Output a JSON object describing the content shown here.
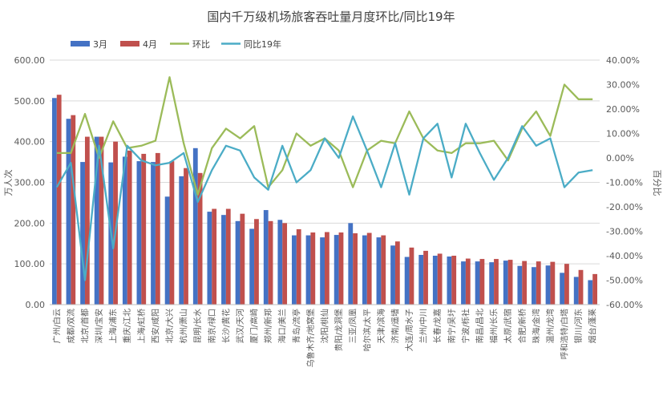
{
  "chart_data": {
    "type": "bar",
    "title": "国内千万级机场旅客吞吐量月度环比/同比19年",
    "ylabel_left": "万人次",
    "ylabel_right": "百分比",
    "ylim_left": [
      0,
      600
    ],
    "ylim_right": [
      -60,
      40
    ],
    "left_ticks": [
      "0.00",
      "100.00",
      "200.00",
      "300.00",
      "400.00",
      "500.00",
      "600.00"
    ],
    "right_ticks": [
      "-60.00%",
      "-50.00%",
      "-40.00%",
      "-30.00%",
      "-20.00%",
      "-10.00%",
      "0.00%",
      "10.00%",
      "20.00%",
      "30.00%",
      "40.00%"
    ],
    "legend_position": "top-left",
    "categories": [
      "广州/白云",
      "成都/双流",
      "北京/首都",
      "深圳/宝安",
      "上海/浦东",
      "重庆/江北",
      "上海/虹桥",
      "西安/咸阳",
      "北京/大兴",
      "杭州/萧山",
      "昆明/长水",
      "南京/禄口",
      "长沙/黄花",
      "武汉/天河",
      "厦门/高崎",
      "郑州/新郑",
      "海口/美兰",
      "青岛/流亭",
      "乌鲁木齐/地窝堡",
      "沈阳/桃仙",
      "贵阳/龙洞堡",
      "三亚/凤凰",
      "哈尔滨/太平",
      "天津/滨海",
      "济南/遥墙",
      "大连/周水子",
      "兰州/中川",
      "长春/龙嘉",
      "南宁/吴圩",
      "宁波/栎社",
      "南昌/昌北",
      "福州/长乐",
      "太原/武宿",
      "合肥/新桥",
      "珠海/金湾",
      "温州/龙湾",
      "呼和浩特/白塔",
      "银川/河东",
      "烟台/蓬莱"
    ],
    "series": [
      {
        "name": "3月",
        "kind": "bar",
        "axis": "left",
        "color": "#4472C4",
        "values": [
          507,
          456,
          350,
          412,
          349,
          363,
          352,
          350,
          265,
          315,
          384,
          228,
          220,
          205,
          186,
          232,
          208,
          170,
          170,
          165,
          171,
          200,
          170,
          165,
          145,
          117,
          122,
          120,
          118,
          106,
          106,
          104,
          108,
          95,
          92,
          96,
          78,
          68,
          60
        ]
      },
      {
        "name": "4月",
        "kind": "bar",
        "axis": "left",
        "color": "#C0504D",
        "values": [
          515,
          465,
          412,
          412,
          400,
          378,
          370,
          372,
          352,
          335,
          323,
          235,
          235,
          223,
          210,
          205,
          200,
          185,
          177,
          178,
          177,
          175,
          176,
          170,
          155,
          140,
          132,
          125,
          120,
          113,
          112,
          112,
          110,
          107,
          106,
          105,
          100,
          85,
          75
        ]
      },
      {
        "name": "环比",
        "kind": "line",
        "axis": "right",
        "color": "#9BBB59",
        "values": [
          2,
          2,
          18,
          0,
          15,
          4,
          5,
          7,
          33,
          6,
          -15,
          4,
          12,
          8,
          13,
          -12,
          -5,
          10,
          5,
          8,
          3,
          -12,
          3,
          7,
          6,
          19,
          8,
          3,
          2,
          6,
          6,
          7,
          -1,
          12,
          19,
          9,
          30,
          24,
          24
        ]
      },
      {
        "name": "同比19年",
        "kind": "line",
        "axis": "right",
        "color": "#4BACC6",
        "values": [
          -12,
          -2,
          -50,
          5,
          -37,
          5,
          -1,
          -3,
          -2,
          2,
          -18,
          -5,
          5,
          3,
          -8,
          -13,
          5,
          -10,
          -5,
          8,
          0,
          17,
          3,
          -12,
          6,
          -15,
          8,
          14,
          -8,
          14,
          2,
          -9,
          0,
          13,
          5,
          8,
          -12,
          -6,
          -5
        ]
      }
    ]
  }
}
